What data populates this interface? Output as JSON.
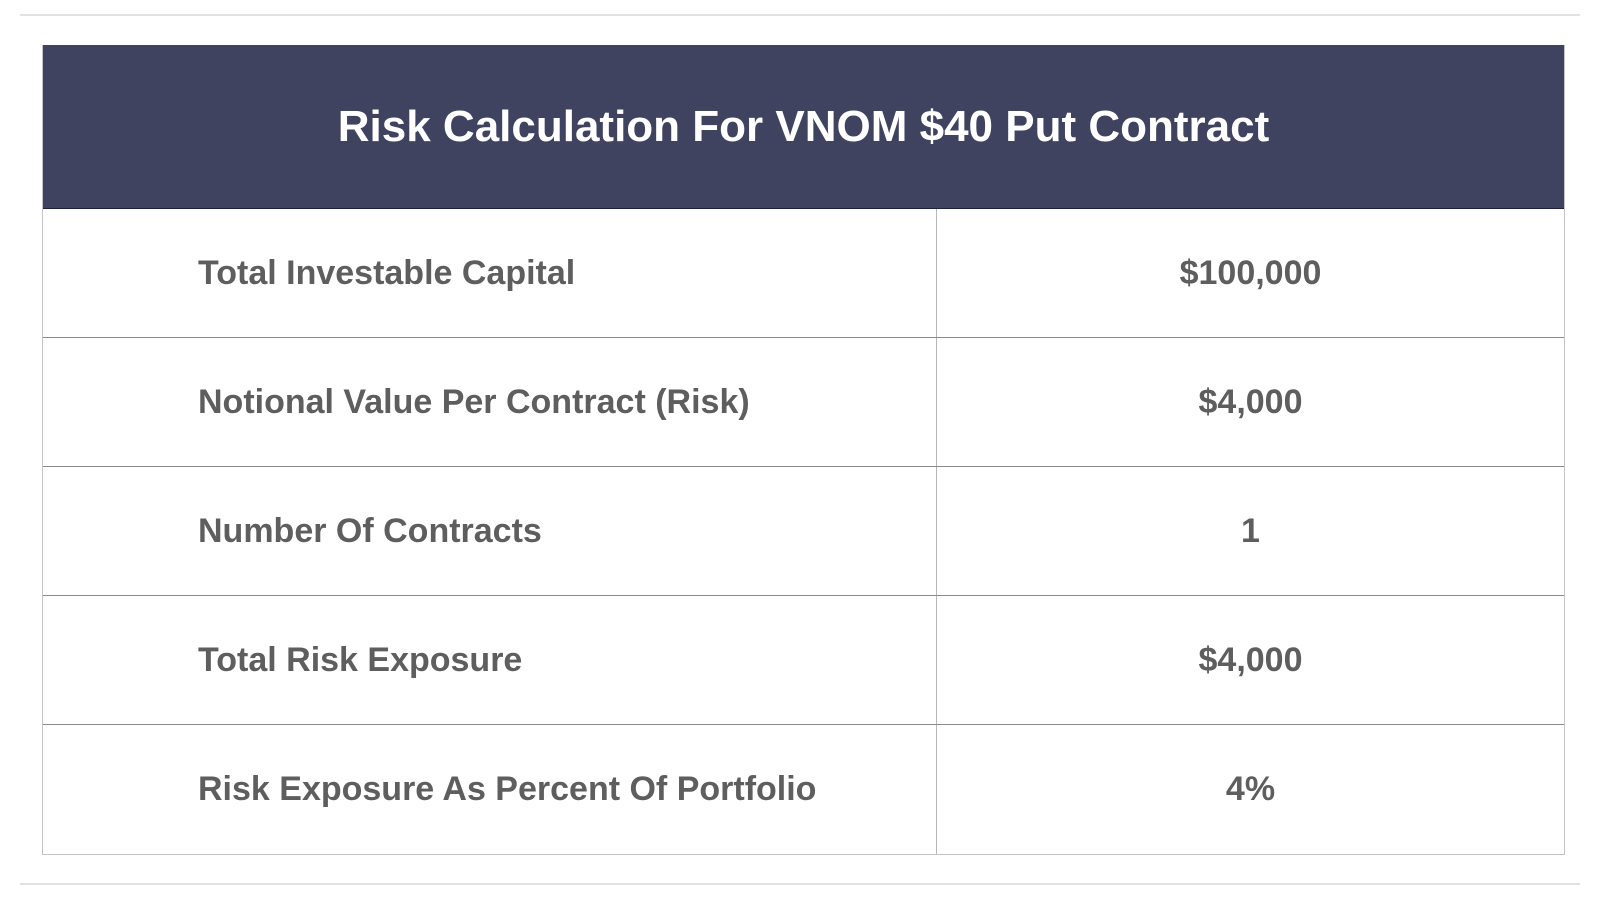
{
  "table": {
    "title": "Risk Calculation For VNOM $40 Put Contract",
    "header_color": "#3f435f",
    "rows": [
      {
        "label": "Total Investable Capital",
        "value": "$100,000"
      },
      {
        "label": "Notional Value Per Contract (Risk)",
        "value": "$4,000"
      },
      {
        "label": "Number Of Contracts",
        "value": "1"
      },
      {
        "label": "Total Risk Exposure",
        "value": "$4,000"
      },
      {
        "label": "Risk Exposure As Percent Of Portfolio",
        "value": "4%"
      }
    ]
  }
}
